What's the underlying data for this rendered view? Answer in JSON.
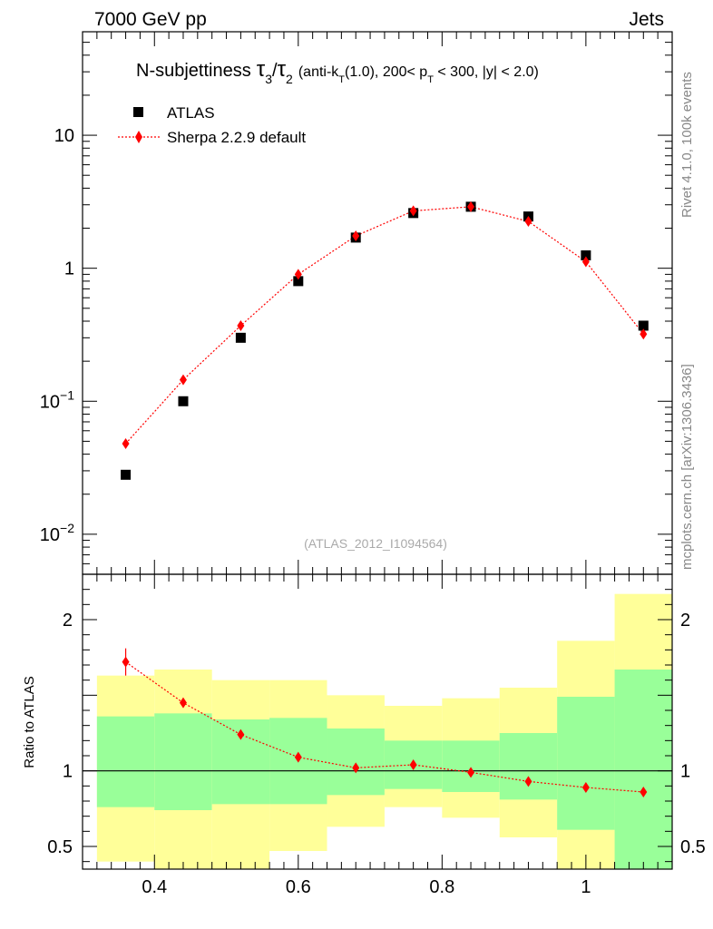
{
  "header": {
    "left": "7000 GeV pp",
    "right": "Jets"
  },
  "side_labels": {
    "top": "Rivet 4.1.0,  100k events",
    "bottom": "mcplots.cern.ch [arXiv:1306.3436]"
  },
  "watermark": "(ATLAS_2012_I1094564)",
  "title": {
    "main": "N-subjettiness",
    "tau3": "τ",
    "sub3": "3",
    "slash": "/",
    "tau2": "τ",
    "sub2": "2",
    "paren_open": "(anti-k",
    "kt_sub": "T",
    "paren_mid": "(1.0), 200< p",
    "pt_sub": "T",
    "paren_end": " < 300, |y| < 2.0)"
  },
  "legend": {
    "data": "ATLAS",
    "mc": "Sherpa 2.2.9 default"
  },
  "colors": {
    "data": "#000000",
    "mc": "#ff0000",
    "band_inner": "#99ff99",
    "band_outer": "#ffff99"
  },
  "chart_data": [
    {
      "type": "scatter",
      "panel": "main",
      "yscale": "log",
      "ylim": [
        0.005,
        60
      ],
      "xlim": [
        0.3,
        1.12
      ],
      "ytick_labels": [
        {
          "value": 10,
          "base": "10",
          "exp": ""
        },
        {
          "value": 1,
          "base": "1",
          "exp": ""
        },
        {
          "value": 0.1,
          "base": "10",
          "exp": "−1"
        },
        {
          "value": 0.01,
          "base": "10",
          "exp": "−2"
        }
      ],
      "x": [
        0.36,
        0.44,
        0.52,
        0.6,
        0.68,
        0.76,
        0.84,
        0.92,
        1.0,
        1.08
      ],
      "series": [
        {
          "name": "ATLAS",
          "values": [
            0.028,
            0.1,
            0.3,
            0.8,
            1.7,
            2.6,
            2.9,
            2.45,
            1.25,
            0.37
          ]
        },
        {
          "name": "Sherpa 2.2.9 default",
          "values": [
            0.048,
            0.145,
            0.37,
            0.9,
            1.75,
            2.7,
            2.9,
            2.25,
            1.12,
            0.32
          ]
        }
      ]
    },
    {
      "type": "line",
      "panel": "ratio",
      "ylabel": "Ratio to ATLAS",
      "ylim": [
        0.35,
        2.3
      ],
      "xlim": [
        0.3,
        1.12
      ],
      "yticks": [
        0.5,
        1,
        2
      ],
      "ytick_labels": [
        "0.5",
        "1",
        "2"
      ],
      "xticks": [
        0.4,
        0.6,
        0.8,
        1.0
      ],
      "xtick_labels": [
        "0.4",
        "0.6",
        "0.8",
        "1"
      ],
      "bin_edges": [
        0.32,
        0.4,
        0.48,
        0.56,
        0.64,
        0.72,
        0.8,
        0.88,
        0.96,
        1.04,
        1.12
      ],
      "band_inner": {
        "low": [
          0.76,
          0.74,
          0.78,
          0.78,
          0.84,
          0.88,
          0.86,
          0.81,
          0.61,
          0.35
        ],
        "high": [
          1.36,
          1.38,
          1.34,
          1.35,
          1.28,
          1.2,
          1.2,
          1.25,
          1.49,
          1.67
        ]
      },
      "band_outer": {
        "low": [
          0.4,
          0.35,
          0.35,
          0.47,
          0.63,
          0.76,
          0.69,
          0.56,
          0.35,
          0.35
        ],
        "high": [
          1.63,
          1.67,
          1.6,
          1.6,
          1.5,
          1.43,
          1.48,
          1.55,
          1.86,
          2.17
        ]
      },
      "x": [
        0.36,
        0.44,
        0.52,
        0.6,
        0.68,
        0.76,
        0.84,
        0.92,
        1.0,
        1.08
      ],
      "series": [
        {
          "name": "Sherpa 2.2.9 default",
          "values": [
            1.72,
            1.45,
            1.24,
            1.09,
            1.02,
            1.04,
            0.99,
            0.93,
            0.89,
            0.86
          ],
          "err": [
            0.09,
            0.03,
            0.02,
            0.015,
            0.015,
            0.015,
            0.015,
            0.015,
            0.015,
            0.02
          ]
        }
      ]
    }
  ]
}
